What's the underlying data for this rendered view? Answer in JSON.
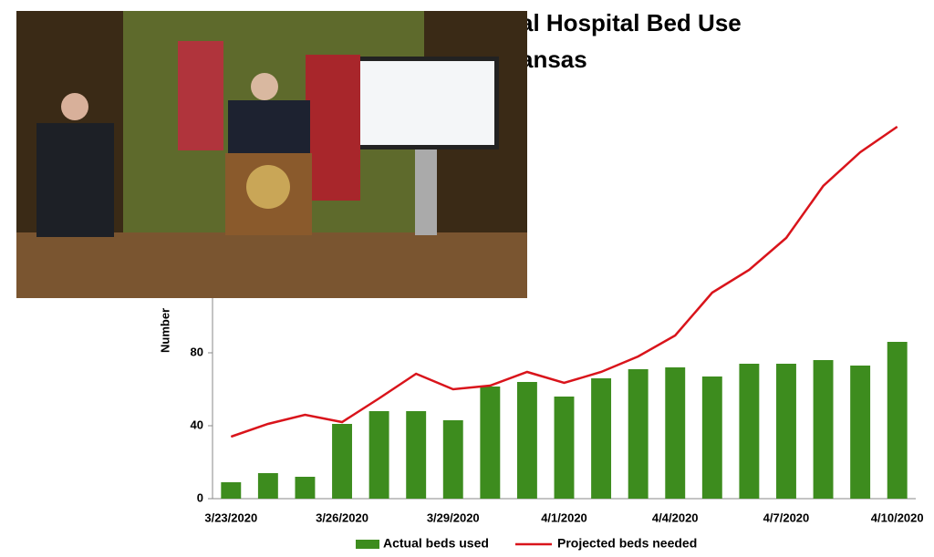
{
  "chart_data": {
    "type": "bar_line",
    "title": "al Hospital Bed Use",
    "subtitle": "ansas",
    "y_label": "Number",
    "categories": [
      "3/23/2020",
      null,
      null,
      "3/26/2020",
      null,
      null,
      "3/29/2020",
      null,
      null,
      "4/1/2020",
      null,
      null,
      "4/4/2020",
      null,
      null,
      "4/7/2020",
      null,
      null,
      "4/10/2020"
    ],
    "series": [
      {
        "name": "Actual beds used",
        "kind": "bar",
        "color": "#3d8c1e",
        "values": [
          9,
          14,
          12,
          41,
          48,
          48,
          43,
          61.5,
          64,
          56,
          66,
          71,
          72,
          67,
          74,
          74,
          76,
          73,
          86
        ]
      },
      {
        "name": "Projected beds needed",
        "kind": "line",
        "color": "#d9141b",
        "values": [
          34,
          41,
          46,
          42,
          55,
          68.5,
          60,
          62,
          69.5,
          63.5,
          69.5,
          78,
          89.5,
          113,
          125.5,
          143,
          171.5,
          190,
          204
        ]
      }
    ],
    "ylim": [
      0,
      240
    ],
    "yticks": [
      0,
      40,
      80
    ],
    "legend": "bottom"
  }
}
